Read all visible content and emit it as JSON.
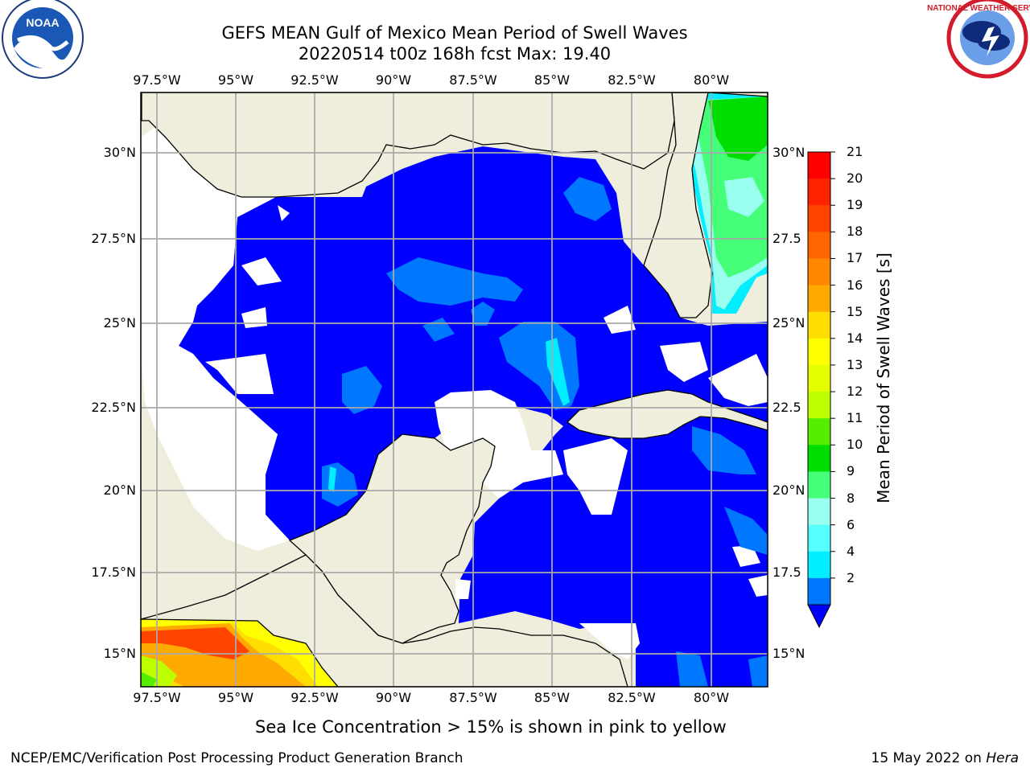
{
  "title": {
    "line1": "GEFS MEAN Gulf of Mexico Mean Period of Swell Waves",
    "line2": "20220514 t00z 168h fcst   Max: 19.40"
  },
  "logos": {
    "left": "NOAA",
    "right": "NATIONAL WEATHER SERVICE"
  },
  "lon_labels": [
    "97.5°W",
    "95°W",
    "92.5°W",
    "90°W",
    "87.5°W",
    "85°W",
    "82.5°W",
    "80°W"
  ],
  "lat_labels_left": [
    "30°N",
    "27.5°N",
    "25°N",
    "22.5°N",
    "20°N",
    "17.5°N",
    "15°N"
  ],
  "lat_labels_right": [
    "30°N",
    "27.5",
    "25°N",
    "22.5",
    "20°N",
    "17.5",
    "15°N"
  ],
  "colorbar": {
    "label": "Mean Period of Swell Waves [s]",
    "ticks": [
      "21",
      "20",
      "19",
      "18",
      "17",
      "16",
      "15",
      "14",
      "13",
      "12",
      "11",
      "10",
      "9",
      "8",
      "6",
      "4",
      "2"
    ],
    "colors": [
      "#ff0000",
      "#ff2200",
      "#ff4400",
      "#ff6600",
      "#ff8800",
      "#ffaa00",
      "#ffdd00",
      "#ffff00",
      "#e6ff00",
      "#bbff00",
      "#55ee00",
      "#00dd00",
      "#44ff77",
      "#99ffee",
      "#55ffff",
      "#00eeff",
      "#0077ff"
    ],
    "under_color": "#0000ff"
  },
  "colors": {
    "land": "#efeedd",
    "ocean_base": "#0000ff",
    "no_data": "#ffffff",
    "level_2_4": "#0077ff",
    "level_4_6": "#00eeff",
    "level_6_9": "#55ffff",
    "level_9_10": "#44ff77",
    "level_10_11": "#00dd00",
    "grid": "#aaaaaa"
  },
  "caption": "Sea Ice Concentration > 15% is shown in pink to yellow",
  "footer": {
    "left": "NCEP/EMC/Verification Post Processing Product Generation Branch",
    "right_date": "15 May 2022 on ",
    "right_host": "Hera"
  }
}
